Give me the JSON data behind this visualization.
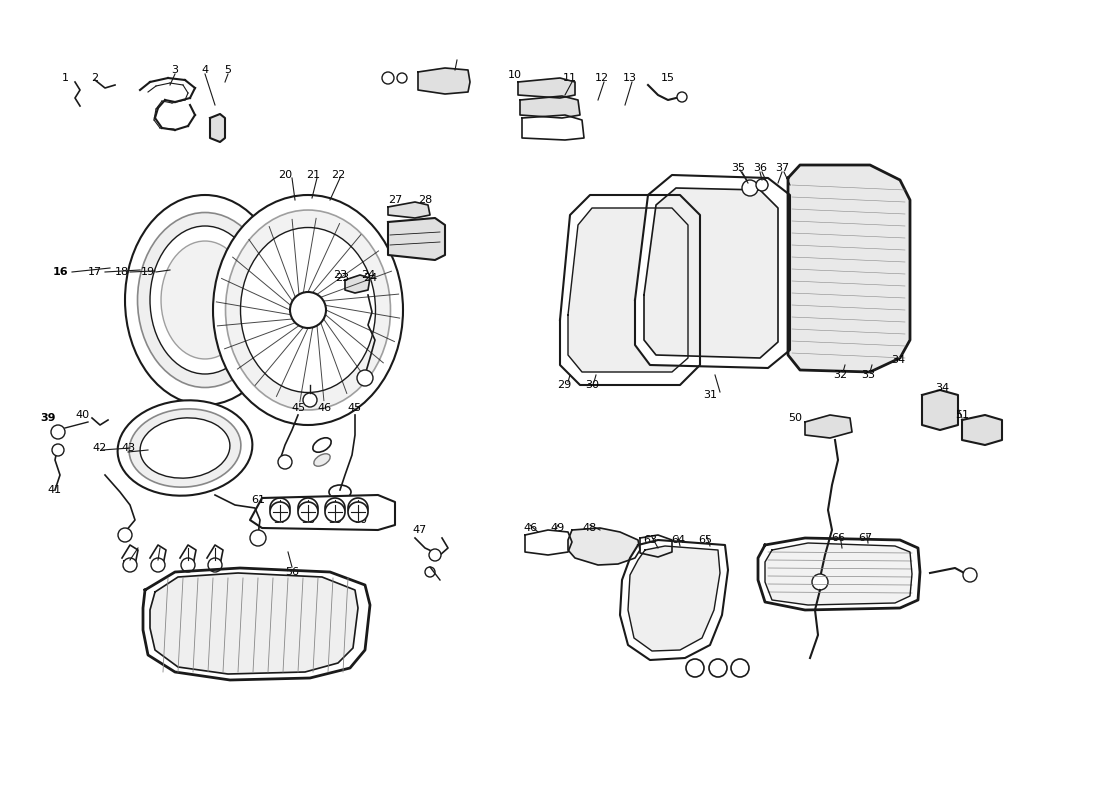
{
  "background_color": "#ffffff",
  "line_color": "#1a1a1a",
  "text_color": "#000000",
  "gray_fill": "#c8c8c8",
  "light_gray": "#e0e0e0",
  "dark_gray": "#a0a0a0"
}
